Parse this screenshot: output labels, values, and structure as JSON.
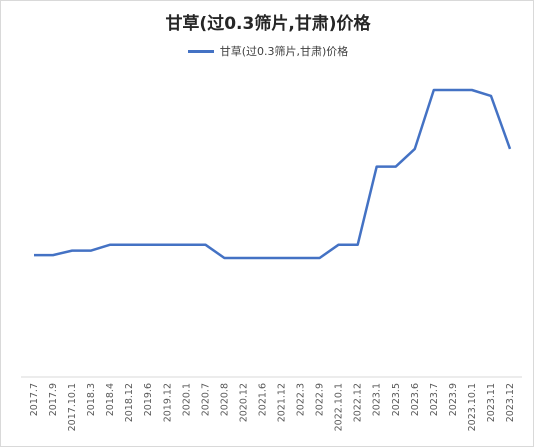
{
  "chart_data": {
    "type": "line",
    "title": "甘草(过0.3筛片,甘肃)价格",
    "xlabel": "",
    "ylabel": "",
    "legend": "top-center",
    "grid": false,
    "categories": [
      "2017.7",
      "2017.9",
      "2017.10.1",
      "2018.3",
      "2018.4",
      "2018.12",
      "2019.6",
      "2019.12",
      "2020.1",
      "2020.7",
      "2020.8",
      "2020.12",
      "2021.6",
      "2021.12",
      "2022.3",
      "2022.9",
      "2022.10.1",
      "2022.12",
      "2023.1",
      "2023.5",
      "2023.6",
      "2023.7",
      "2023.9",
      "2023.10.1",
      "2023.11",
      "2023.12"
    ],
    "ylim": [
      0,
      100
    ],
    "series": [
      {
        "name": "甘草(过0.3筛片,甘肃)价格",
        "color": "#4472c4",
        "values": [
          30,
          30,
          31.5,
          31.5,
          33.5,
          33.5,
          33.5,
          33.5,
          33.5,
          33.5,
          29,
          29,
          29,
          29,
          29,
          29,
          33.5,
          33.5,
          60,
          60,
          66,
          86,
          86,
          86,
          84,
          66
        ]
      }
    ]
  }
}
